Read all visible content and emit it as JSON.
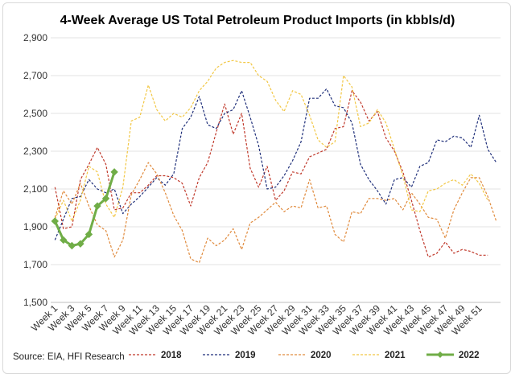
{
  "chart_data": {
    "type": "line",
    "title": "4-Week Average US Total Petroleum Product Imports (in kbbls/d)",
    "source": "Source: EIA, HFI Research",
    "xlabel": "",
    "ylabel": "",
    "ylim": [
      1500,
      2900
    ],
    "yticks": [
      1500,
      1700,
      1900,
      2100,
      2300,
      2500,
      2700,
      2900
    ],
    "ytick_labels": [
      "1,500",
      "1,700",
      "1,900",
      "2,100",
      "2,300",
      "2,500",
      "2,700",
      "2,900"
    ],
    "x_tick_labels": [
      "Week 1",
      "Week 3",
      "Week 5",
      "Week 7",
      "Week 9",
      "Week 11",
      "Week 13",
      "Week 15",
      "Week 17",
      "Week 19",
      "Week 21",
      "Week 23",
      "Week 25",
      "Week 27",
      "Week 29",
      "Week 31",
      "Week 33",
      "Week 35",
      "Week 37",
      "Week 39",
      "Week 41",
      "Week 43",
      "Week 45",
      "Week 47",
      "Week 49",
      "Week 51"
    ],
    "grid": true,
    "legend_position": "bottom",
    "series": [
      {
        "name": "2018",
        "color": "#c0392b",
        "style": "dashed",
        "marker": false,
        "values": [
          2110,
          1890,
          1900,
          2150,
          2230,
          2320,
          2230,
          1990,
          2000,
          2080,
          2080,
          2120,
          2170,
          2170,
          2160,
          2130,
          2010,
          2160,
          2240,
          2400,
          2550,
          2390,
          2500,
          2210,
          2110,
          2220,
          2040,
          2090,
          2190,
          2180,
          2270,
          2290,
          2310,
          2420,
          2430,
          2620,
          2560,
          2460,
          2510,
          2370,
          2300,
          2190,
          2040,
          1880,
          1740,
          1760,
          1820,
          1760,
          1780,
          1770,
          1750,
          1750
        ]
      },
      {
        "name": "2019",
        "color": "#1f2f7a",
        "style": "dashed",
        "marker": false,
        "values": [
          1830,
          1940,
          2050,
          2060,
          2150,
          2100,
          2080,
          2100,
          1970,
          2020,
          2060,
          2110,
          2160,
          2120,
          2180,
          2420,
          2480,
          2590,
          2440,
          2420,
          2500,
          2520,
          2620,
          2480,
          2330,
          2100,
          2110,
          2170,
          2250,
          2350,
          2580,
          2580,
          2630,
          2540,
          2530,
          2450,
          2230,
          2150,
          2090,
          2020,
          2150,
          2160,
          2110,
          2220,
          2240,
          2360,
          2350,
          2380,
          2370,
          2320,
          2490,
          2310,
          2240
        ]
      },
      {
        "name": "2020",
        "color": "#e08a3c",
        "style": "dashed",
        "marker": false,
        "values": [
          1950,
          2090,
          2020,
          2130,
          2010,
          1910,
          1880,
          1740,
          1830,
          2070,
          2150,
          2240,
          2180,
          2080,
          1960,
          1880,
          1730,
          1710,
          1840,
          1800,
          1830,
          1890,
          1780,
          1920,
          1950,
          1990,
          2030,
          1980,
          2010,
          2000,
          2150,
          2000,
          2010,
          1860,
          1820,
          1980,
          1970,
          2050,
          2050,
          2040,
          2050,
          1990,
          2080,
          2020,
          1950,
          1940,
          1840,
          1990,
          2080,
          2160,
          2160,
          2060,
          1930
        ]
      },
      {
        "name": "2021",
        "color": "#f2c744",
        "style": "dashed",
        "marker": false,
        "values": [
          1940,
          2040,
          1930,
          2040,
          2220,
          2190,
          2020,
          1950,
          2110,
          2460,
          2480,
          2650,
          2520,
          2460,
          2500,
          2480,
          2530,
          2620,
          2670,
          2740,
          2770,
          2780,
          2770,
          2770,
          2700,
          2670,
          2570,
          2510,
          2620,
          2600,
          2490,
          2360,
          2320,
          2350,
          2700,
          2640,
          2430,
          2450,
          2520,
          2450,
          2310,
          2170,
          1990,
          1980,
          2090,
          2100,
          2130,
          2150,
          2120,
          2180,
          2130,
          2040
        ]
      },
      {
        "name": "2022",
        "color": "#70ad47",
        "style": "solid",
        "marker": true,
        "values": [
          1930,
          1830,
          1800,
          1810,
          1860,
          2010,
          2050,
          2190
        ]
      }
    ]
  }
}
